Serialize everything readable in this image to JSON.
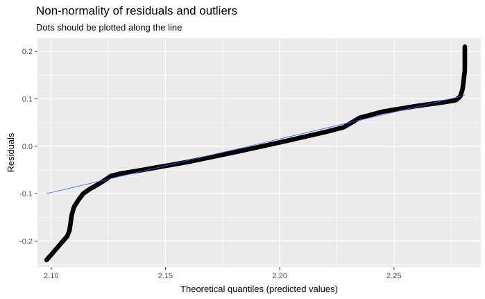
{
  "chart_data": {
    "type": "scatter",
    "title": "Non-normality of residuals and outliers",
    "subtitle": "Dots should be plotted along the line",
    "xlabel": "Theoretical quantiles (predicted values)",
    "ylabel": "Residuals",
    "xlim": [
      2.094,
      2.288
    ],
    "ylim": [
      -0.255,
      0.228
    ],
    "x_ticks": [
      2.1,
      2.15,
      2.2,
      2.25
    ],
    "x_tick_labels": [
      "2.10",
      "2.15",
      "2.20",
      "2.25"
    ],
    "y_ticks": [
      -0.2,
      -0.1,
      0.0,
      0.1,
      0.2
    ],
    "y_tick_labels": [
      "-0.2",
      "-0.1",
      "0.0",
      "0.1",
      "0.2"
    ],
    "grid": true,
    "background": "#ebebeb",
    "point_color": "#000000",
    "line_color": "#3366ff",
    "reference_line": {
      "x": [
        2.098,
        2.281
      ],
      "y": [
        -0.1,
        0.107
      ]
    },
    "qq_shape": {
      "x": [
        2.098,
        2.107,
        2.108,
        2.109,
        2.11,
        2.112,
        2.114,
        2.117,
        2.12,
        2.124,
        2.126,
        2.13,
        2.14,
        2.16,
        2.18,
        2.2,
        2.22,
        2.228,
        2.235,
        2.245,
        2.26,
        2.272,
        2.277,
        2.279,
        2.28,
        2.281,
        2.281
      ],
      "y": [
        -0.24,
        -0.19,
        -0.178,
        -0.145,
        -0.128,
        -0.113,
        -0.1,
        -0.09,
        -0.082,
        -0.07,
        -0.063,
        -0.058,
        -0.05,
        -0.033,
        -0.013,
        0.008,
        0.03,
        0.04,
        0.06,
        0.073,
        0.085,
        0.093,
        0.097,
        0.105,
        0.12,
        0.16,
        0.21
      ]
    },
    "n_points": 700
  }
}
